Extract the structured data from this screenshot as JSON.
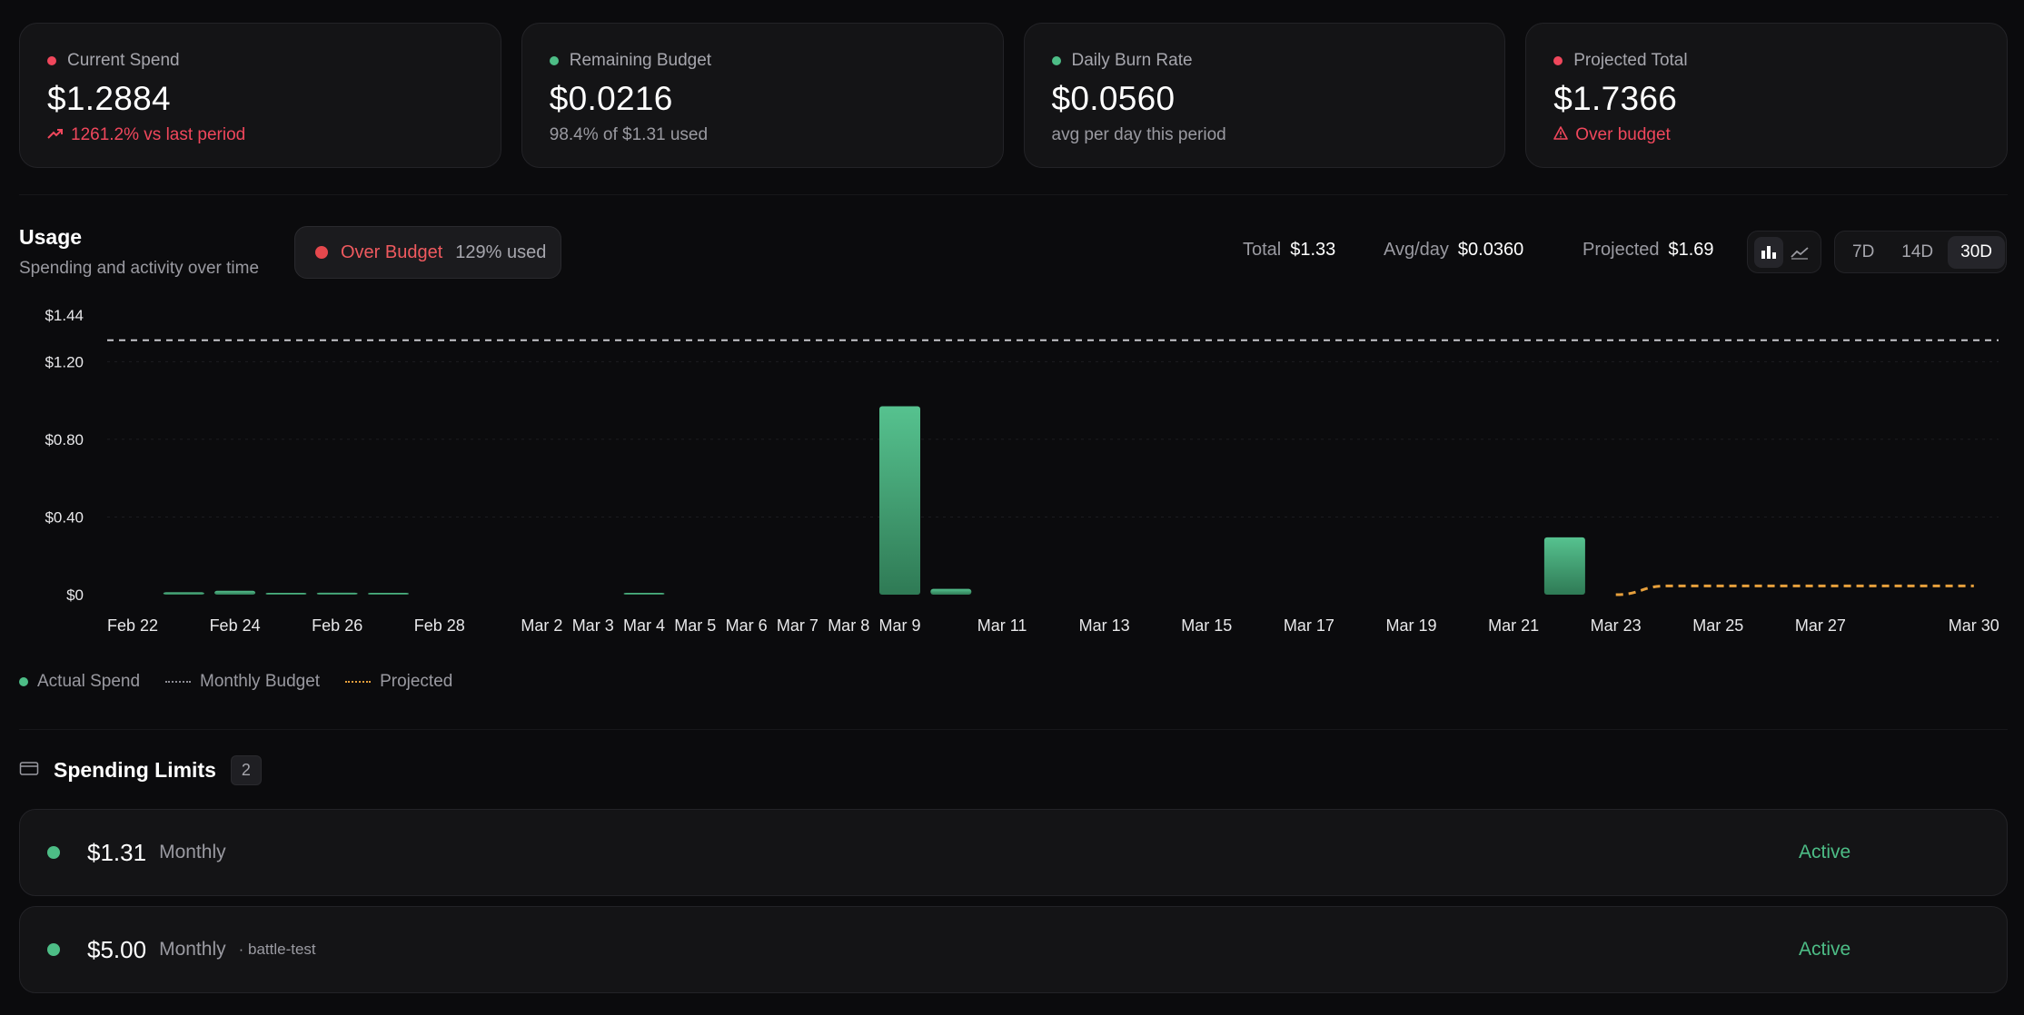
{
  "stats": [
    {
      "label": "Current Spend",
      "value": "$1.2884",
      "sub": "1261.2% vs last period",
      "sub_icon": "trending-up-icon",
      "dot": "red",
      "sub_color": "red"
    },
    {
      "label": "Remaining Budget",
      "value": "$0.0216",
      "sub": "98.4% of $1.31 used",
      "dot": "green",
      "sub_color": "gray"
    },
    {
      "label": "Daily Burn Rate",
      "value": "$0.0560",
      "sub": "avg per day this period",
      "dot": "green",
      "sub_color": "gray"
    },
    {
      "label": "Projected Total",
      "value": "$1.7366",
      "sub": "Over budget",
      "sub_icon": "warning-triangle-icon",
      "dot": "red",
      "sub_color": "red"
    }
  ],
  "usage": {
    "title": "Usage",
    "subtitle": "Spending and activity over time",
    "budget_status": "Over Budget",
    "budget_used": "129% used",
    "total_label": "Total",
    "total_value": "$1.33",
    "avg_label": "Avg/day",
    "avg_value": "$0.0360",
    "projected_label": "Projected",
    "projected_value": "$1.69",
    "view_modes": [
      "bar-chart-icon",
      "line-chart-icon"
    ],
    "active_view": "bar-chart-icon",
    "ranges": [
      "7D",
      "14D",
      "30D"
    ],
    "active_range": "30D"
  },
  "chart_data": {
    "type": "bar",
    "ylim": [
      0,
      1.44
    ],
    "y_ticks": [
      {
        "value": 1.44,
        "label": "$1.44"
      },
      {
        "value": 1.2,
        "label": "$1.20"
      },
      {
        "value": 0.8,
        "label": "$0.80"
      },
      {
        "value": 0.4,
        "label": "$0.40"
      },
      {
        "value": 0,
        "label": "$0"
      }
    ],
    "x_labels": [
      {
        "slot": 0,
        "label": "Feb 22"
      },
      {
        "slot": 2,
        "label": "Feb 24"
      },
      {
        "slot": 4,
        "label": "Feb 26"
      },
      {
        "slot": 6,
        "label": "Feb 28"
      },
      {
        "slot": 8,
        "label": "Mar 2"
      },
      {
        "slot": 9,
        "label": "Mar 3"
      },
      {
        "slot": 10,
        "label": "Mar 4"
      },
      {
        "slot": 11,
        "label": "Mar 5"
      },
      {
        "slot": 12,
        "label": "Mar 6"
      },
      {
        "slot": 13,
        "label": "Mar 7"
      },
      {
        "slot": 14,
        "label": "Mar 8"
      },
      {
        "slot": 15,
        "label": "Mar 9"
      },
      {
        "slot": 17,
        "label": "Mar 11"
      },
      {
        "slot": 19,
        "label": "Mar 13"
      },
      {
        "slot": 21,
        "label": "Mar 15"
      },
      {
        "slot": 23,
        "label": "Mar 17"
      },
      {
        "slot": 25,
        "label": "Mar 19"
      },
      {
        "slot": 27,
        "label": "Mar 21"
      },
      {
        "slot": 29,
        "label": "Mar 23"
      },
      {
        "slot": 31,
        "label": "Mar 25"
      },
      {
        "slot": 33,
        "label": "Mar 27"
      },
      {
        "slot": 36,
        "label": "Mar 30"
      }
    ],
    "bars": [
      {
        "slot": 1,
        "value": 0.012
      },
      {
        "slot": 2,
        "value": 0.02
      },
      {
        "slot": 3,
        "value": 0.003
      },
      {
        "slot": 4,
        "value": 0.01
      },
      {
        "slot": 5,
        "value": 0.003
      },
      {
        "slot": 10,
        "value": 0.004
      },
      {
        "slot": 15,
        "value": 0.97
      },
      {
        "slot": 16,
        "value": 0.03
      },
      {
        "slot": 28,
        "value": 0.295
      }
    ],
    "budget_line": 1.31,
    "projected": [
      {
        "slot": 29,
        "value": 0.0
      },
      {
        "slot": 30,
        "value": 0.045
      },
      {
        "slot": 31,
        "value": 0.045
      },
      {
        "slot": 32,
        "value": 0.045
      },
      {
        "slot": 33,
        "value": 0.045
      },
      {
        "slot": 34,
        "value": 0.045
      },
      {
        "slot": 35,
        "value": 0.045
      },
      {
        "slot": 36,
        "value": 0.045
      }
    ],
    "legend": [
      "Actual Spend",
      "Monthly Budget",
      "Projected"
    ],
    "colors": {
      "bar": "#4dbd86",
      "budget": "#c7c7cc",
      "projected": "#e7a03c"
    }
  },
  "limits": {
    "title": "Spending Limits",
    "count": "2",
    "items": [
      {
        "amount": "$1.31",
        "period": "Monthly",
        "tag": "",
        "status": "Active"
      },
      {
        "amount": "$5.00",
        "period": "Monthly",
        "tag": "· battle-test",
        "status": "Active"
      }
    ]
  }
}
